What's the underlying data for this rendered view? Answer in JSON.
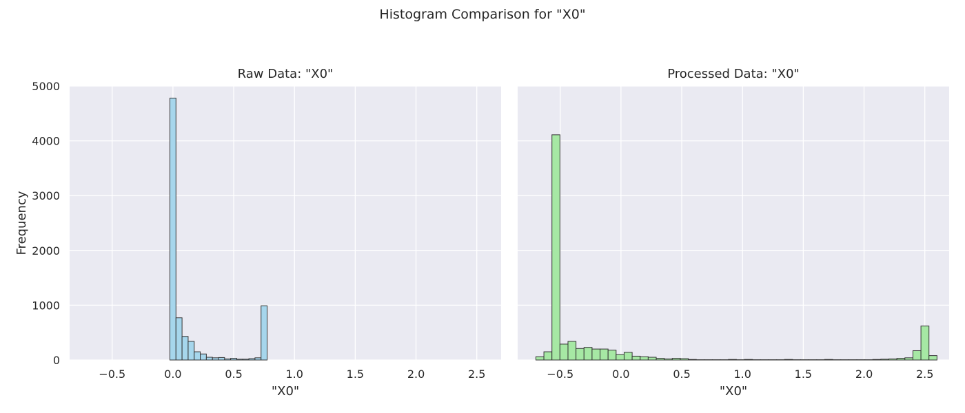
{
  "figure": {
    "title": "Histogram Comparison for \"X0\""
  },
  "colors": {
    "background": "#eaeaf2",
    "grid": "#ffffff",
    "raw_bar": "#a6d6ec",
    "processed_bar": "#a6e8a4",
    "bar_edge": "#333333"
  },
  "chart_data": [
    {
      "type": "bar",
      "title": "Raw Data: \"X0\"",
      "xlabel": "\"X0\"",
      "ylabel": "Frequency",
      "xlim": [
        -0.85,
        2.7
      ],
      "ylim": [
        0,
        5000
      ],
      "xticks": [
        -0.5,
        0.0,
        0.5,
        1.0,
        1.5,
        2.0,
        2.5
      ],
      "xtick_labels": [
        "−0.5",
        "0.0",
        "0.5",
        "1.0",
        "1.5",
        "2.0",
        "2.5"
      ],
      "yticks": [
        0,
        1000,
        2000,
        3000,
        4000,
        5000
      ],
      "ytick_labels": [
        "0",
        "1000",
        "2000",
        "3000",
        "4000",
        "5000"
      ],
      "grid": true,
      "bin_width": 0.05,
      "bins": [
        {
          "x0": -0.025,
          "x1": 0.025,
          "count": 4780
        },
        {
          "x0": 0.025,
          "x1": 0.075,
          "count": 770
        },
        {
          "x0": 0.075,
          "x1": 0.125,
          "count": 430
        },
        {
          "x0": 0.125,
          "x1": 0.175,
          "count": 340
        },
        {
          "x0": 0.175,
          "x1": 0.225,
          "count": 150
        },
        {
          "x0": 0.225,
          "x1": 0.275,
          "count": 110
        },
        {
          "x0": 0.275,
          "x1": 0.325,
          "count": 50
        },
        {
          "x0": 0.325,
          "x1": 0.375,
          "count": 40
        },
        {
          "x0": 0.375,
          "x1": 0.425,
          "count": 45
        },
        {
          "x0": 0.425,
          "x1": 0.475,
          "count": 20
        },
        {
          "x0": 0.475,
          "x1": 0.525,
          "count": 30
        },
        {
          "x0": 0.525,
          "x1": 0.575,
          "count": 15
        },
        {
          "x0": 0.575,
          "x1": 0.625,
          "count": 15
        },
        {
          "x0": 0.625,
          "x1": 0.675,
          "count": 25
        },
        {
          "x0": 0.675,
          "x1": 0.725,
          "count": 40
        },
        {
          "x0": 0.725,
          "x1": 0.775,
          "count": 990
        }
      ]
    },
    {
      "type": "bar",
      "title": "Processed Data: \"X0\"",
      "xlabel": "\"X0\"",
      "ylabel": "",
      "xlim": [
        -0.85,
        2.7
      ],
      "ylim": [
        0,
        5000
      ],
      "xticks": [
        -0.5,
        0.0,
        0.5,
        1.0,
        1.5,
        2.0,
        2.5
      ],
      "xtick_labels": [
        "−0.5",
        "0.0",
        "0.5",
        "1.0",
        "1.5",
        "2.0",
        "2.5"
      ],
      "yticks": [
        0,
        1000,
        2000,
        3000,
        4000,
        5000
      ],
      "grid": true,
      "bin_width": 0.066,
      "bins": [
        {
          "x0": -0.7,
          "x1": -0.634,
          "count": 60
        },
        {
          "x0": -0.634,
          "x1": -0.568,
          "count": 150
        },
        {
          "x0": -0.568,
          "x1": -0.502,
          "count": 4110
        },
        {
          "x0": -0.502,
          "x1": -0.436,
          "count": 290
        },
        {
          "x0": -0.436,
          "x1": -0.37,
          "count": 340
        },
        {
          "x0": -0.37,
          "x1": -0.304,
          "count": 210
        },
        {
          "x0": -0.304,
          "x1": -0.238,
          "count": 230
        },
        {
          "x0": -0.238,
          "x1": -0.172,
          "count": 200
        },
        {
          "x0": -0.172,
          "x1": -0.106,
          "count": 200
        },
        {
          "x0": -0.106,
          "x1": -0.04,
          "count": 180
        },
        {
          "x0": -0.04,
          "x1": 0.026,
          "count": 100
        },
        {
          "x0": 0.026,
          "x1": 0.092,
          "count": 140
        },
        {
          "x0": 0.092,
          "x1": 0.158,
          "count": 70
        },
        {
          "x0": 0.158,
          "x1": 0.224,
          "count": 60
        },
        {
          "x0": 0.224,
          "x1": 0.29,
          "count": 50
        },
        {
          "x0": 0.29,
          "x1": 0.356,
          "count": 30
        },
        {
          "x0": 0.356,
          "x1": 0.422,
          "count": 20
        },
        {
          "x0": 0.422,
          "x1": 0.488,
          "count": 30
        },
        {
          "x0": 0.488,
          "x1": 0.554,
          "count": 25
        },
        {
          "x0": 0.554,
          "x1": 0.62,
          "count": 10
        },
        {
          "x0": 0.62,
          "x1": 0.686,
          "count": 5
        },
        {
          "x0": 0.686,
          "x1": 0.752,
          "count": 5
        },
        {
          "x0": 0.752,
          "x1": 0.818,
          "count": 5
        },
        {
          "x0": 0.818,
          "x1": 0.884,
          "count": 5
        },
        {
          "x0": 0.884,
          "x1": 0.95,
          "count": 10
        },
        {
          "x0": 0.95,
          "x1": 1.016,
          "count": 5
        },
        {
          "x0": 1.016,
          "x1": 1.082,
          "count": 10
        },
        {
          "x0": 1.082,
          "x1": 1.148,
          "count": 5
        },
        {
          "x0": 1.148,
          "x1": 1.214,
          "count": 5
        },
        {
          "x0": 1.214,
          "x1": 1.28,
          "count": 5
        },
        {
          "x0": 1.28,
          "x1": 1.346,
          "count": 5
        },
        {
          "x0": 1.346,
          "x1": 1.412,
          "count": 10
        },
        {
          "x0": 1.412,
          "x1": 1.478,
          "count": 5
        },
        {
          "x0": 1.478,
          "x1": 1.544,
          "count": 5
        },
        {
          "x0": 1.544,
          "x1": 1.61,
          "count": 5
        },
        {
          "x0": 1.61,
          "x1": 1.676,
          "count": 5
        },
        {
          "x0": 1.676,
          "x1": 1.742,
          "count": 10
        },
        {
          "x0": 1.742,
          "x1": 1.808,
          "count": 5
        },
        {
          "x0": 1.808,
          "x1": 1.874,
          "count": 5
        },
        {
          "x0": 1.874,
          "x1": 1.94,
          "count": 5
        },
        {
          "x0": 1.94,
          "x1": 2.006,
          "count": 5
        },
        {
          "x0": 2.006,
          "x1": 2.072,
          "count": 5
        },
        {
          "x0": 2.072,
          "x1": 2.138,
          "count": 10
        },
        {
          "x0": 2.138,
          "x1": 2.204,
          "count": 15
        },
        {
          "x0": 2.204,
          "x1": 2.27,
          "count": 20
        },
        {
          "x0": 2.27,
          "x1": 2.336,
          "count": 30
        },
        {
          "x0": 2.336,
          "x1": 2.402,
          "count": 40
        },
        {
          "x0": 2.402,
          "x1": 2.468,
          "count": 170
        },
        {
          "x0": 2.468,
          "x1": 2.534,
          "count": 620
        },
        {
          "x0": 2.534,
          "x1": 2.6,
          "count": 80
        }
      ]
    }
  ]
}
